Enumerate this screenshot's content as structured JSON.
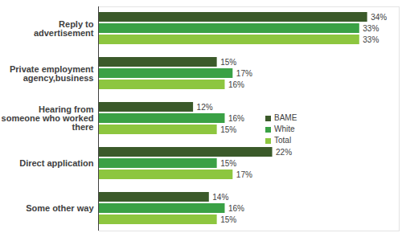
{
  "chart_data": {
    "type": "bar",
    "orientation": "horizontal",
    "categories": [
      "Reply to advertisement",
      "Private employment agency,business",
      "Hearing from someone who worked there",
      "Direct application",
      "Some other way"
    ],
    "series": [
      {
        "name": "BAME",
        "color": "#3b5a2a",
        "values": [
          34,
          15,
          12,
          22,
          14
        ],
        "value_labels": [
          "34%",
          "15%",
          "12%",
          "22%",
          "14%"
        ]
      },
      {
        "name": "White",
        "color": "#3aa145",
        "values": [
          33,
          17,
          16,
          15,
          16
        ],
        "value_labels": [
          "33%",
          "17%",
          "16%",
          "15%",
          "16%"
        ]
      },
      {
        "name": "Total",
        "color": "#8dc63f",
        "values": [
          33,
          16,
          15,
          17,
          15
        ],
        "value_labels": [
          "33%",
          "16%",
          "15%",
          "17%",
          "15%"
        ]
      }
    ],
    "xlim": [
      0,
      38
    ],
    "data_labels": true,
    "tick_labels": "y",
    "legend": "right",
    "grid": false
  }
}
